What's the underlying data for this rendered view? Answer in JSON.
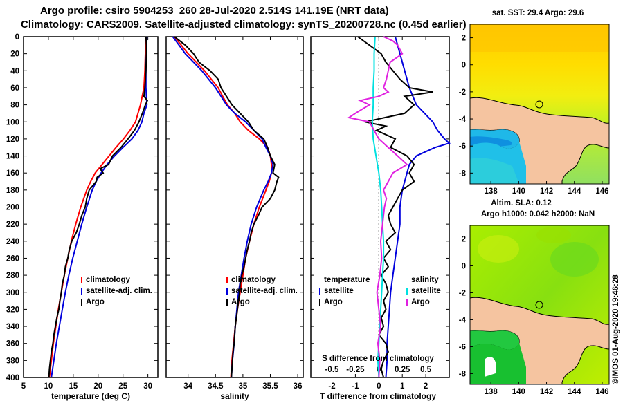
{
  "header": {
    "line1": "Argo profile: csiro 5904253_260 28-Jul-2020 2.514S 141.19E (NRT data)",
    "line2": "Climatology: CARS2009. Satellite-adjusted climatology: synTS_20200728.nc (0.45d earlier)"
  },
  "colors": {
    "climatology": "#ff0000",
    "satellite": "#0000dd",
    "argo": "#000000",
    "sat_s_diff": "#00e0e0",
    "argo_s_diff": "#e020e0",
    "land": "#f5c4a0"
  },
  "chart_data": [
    {
      "type": "line",
      "id": "temperature",
      "xlabel": "temperature (deg C)",
      "ylabel": "",
      "xlim": [
        5,
        32
      ],
      "ylim": [
        400,
        0
      ],
      "xticks": [
        "5",
        "10",
        "15",
        "20",
        "25",
        "30"
      ],
      "yticks": [
        "0",
        "20",
        "40",
        "60",
        "80",
        "100",
        "120",
        "140",
        "160",
        "180",
        "200",
        "220",
        "240",
        "260",
        "280",
        "300",
        "320",
        "340",
        "360",
        "380",
        "400"
      ],
      "legend": [
        "climatology",
        "satellite-adj. clim.",
        "Argo"
      ],
      "series": [
        {
          "name": "climatology",
          "color": "red",
          "depth": [
            0,
            20,
            40,
            60,
            80,
            100,
            110,
            120,
            130,
            140,
            150,
            160,
            170,
            180,
            200,
            220,
            240,
            260,
            280,
            300,
            320,
            340,
            360,
            380,
            400
          ],
          "values": [
            29.6,
            29.5,
            29.4,
            29.2,
            28.5,
            27.5,
            26.4,
            25.1,
            23.6,
            22.2,
            20.8,
            19.4,
            18.5,
            17.7,
            16.5,
            15.5,
            14.6,
            13.9,
            13.2,
            12.6,
            12.0,
            11.5,
            11.0,
            10.6,
            10.2
          ]
        },
        {
          "name": "satellite-adj. clim.",
          "color": "blue",
          "depth": [
            0,
            20,
            40,
            60,
            70,
            80,
            90,
            100,
            110,
            120,
            130,
            140,
            150,
            160,
            170,
            180,
            200,
            220,
            240,
            260,
            280,
            300,
            320,
            340,
            360,
            380,
            400
          ],
          "values": [
            29.8,
            29.7,
            29.6,
            29.6,
            29.7,
            29.8,
            29.2,
            28.8,
            28.0,
            26.8,
            25.0,
            23.3,
            21.8,
            20.6,
            19.6,
            18.8,
            17.7,
            16.7,
            15.8,
            14.9,
            14.1,
            13.4,
            12.8,
            12.2,
            11.6,
            11.1,
            10.6
          ]
        },
        {
          "name": "Argo",
          "color": "black",
          "depth": [
            0,
            10,
            20,
            40,
            60,
            70,
            75,
            80,
            90,
            100,
            110,
            120,
            130,
            140,
            150,
            155,
            160,
            165,
            170,
            180,
            190,
            200,
            210,
            220,
            230,
            240,
            250,
            260,
            270,
            280,
            290,
            300,
            310,
            320,
            330,
            340,
            350,
            360,
            370,
            380,
            390,
            400
          ],
          "values": [
            29.6,
            29.7,
            29.7,
            29.6,
            29.4,
            29.2,
            29.9,
            29.5,
            28.9,
            28.2,
            27.3,
            26.0,
            24.6,
            22.9,
            22.1,
            20.4,
            21.0,
            19.8,
            19.6,
            18.2,
            17.7,
            17.4,
            16.7,
            16.2,
            15.6,
            14.7,
            14.2,
            13.9,
            13.4,
            13.2,
            12.8,
            12.6,
            12.3,
            12.1,
            11.7,
            11.4,
            11.1,
            10.9,
            10.6,
            10.4,
            10.2,
            10.1
          ]
        }
      ]
    },
    {
      "type": "line",
      "id": "salinity",
      "xlabel": "salinity",
      "xlim": [
        33.6,
        36.1
      ],
      "ylim": [
        400,
        0
      ],
      "xticks": [
        "34",
        "34.5",
        "35",
        "35.5",
        "36"
      ],
      "legend": [
        "climatology",
        "satellite-adj. clim.",
        "Argo"
      ],
      "series": [
        {
          "name": "climatology",
          "color": "red",
          "depth": [
            0,
            20,
            40,
            60,
            70,
            80,
            90,
            100,
            110,
            120,
            130,
            140,
            150,
            160,
            170,
            180,
            200,
            220,
            240,
            260,
            280,
            300,
            320,
            340,
            360,
            380,
            400
          ],
          "values": [
            33.75,
            34.0,
            34.3,
            34.55,
            34.63,
            34.72,
            34.85,
            34.95,
            35.1,
            35.3,
            35.45,
            35.5,
            35.52,
            35.52,
            35.48,
            35.42,
            35.3,
            35.2,
            35.12,
            35.05,
            35.0,
            34.95,
            34.9,
            34.86,
            34.83,
            34.8,
            34.78
          ]
        },
        {
          "name": "satellite-adj. clim.",
          "color": "blue",
          "depth": [
            0,
            20,
            40,
            60,
            80,
            90,
            100,
            110,
            120,
            130,
            140,
            150,
            160,
            170,
            180,
            200,
            220,
            240,
            260,
            280,
            300,
            320,
            340,
            360,
            380,
            400
          ],
          "values": [
            33.72,
            33.95,
            34.25,
            34.5,
            34.7,
            34.85,
            35.05,
            35.2,
            35.35,
            35.42,
            35.5,
            35.55,
            35.52,
            35.46,
            35.38,
            35.25,
            35.15,
            35.08,
            35.02,
            34.97,
            34.92,
            34.89,
            34.86,
            34.84,
            34.81,
            34.79
          ]
        },
        {
          "name": "Argo",
          "color": "black",
          "depth": [
            0,
            5,
            10,
            20,
            30,
            40,
            50,
            60,
            70,
            80,
            90,
            100,
            110,
            120,
            130,
            140,
            150,
            160,
            165,
            170,
            180,
            190,
            200,
            210,
            220,
            230,
            240,
            250,
            260,
            270,
            280,
            290,
            300,
            310,
            320,
            330,
            340,
            350,
            360,
            370,
            380,
            390,
            400
          ],
          "values": [
            33.75,
            33.85,
            33.95,
            34.1,
            34.2,
            34.4,
            34.55,
            34.6,
            34.7,
            34.8,
            34.95,
            35.1,
            35.2,
            35.38,
            35.45,
            35.5,
            35.58,
            35.55,
            35.65,
            35.62,
            35.58,
            35.5,
            35.35,
            35.28,
            35.2,
            35.15,
            35.12,
            35.08,
            35.05,
            35.02,
            34.98,
            34.95,
            34.94,
            34.92,
            34.9,
            34.88,
            34.86,
            34.85,
            34.84,
            34.82,
            34.81,
            34.8,
            34.79
          ]
        }
      ]
    },
    {
      "type": "line",
      "id": "difference",
      "xlabel": "T difference from climatology",
      "xlim": [
        -2.9,
        3.0
      ],
      "ylim": [
        400,
        0
      ],
      "xticks": [
        "-2",
        "-1",
        "0",
        "1",
        "2"
      ],
      "top_axis_label": "S difference from climatology",
      "top_axis_ticks": [
        "-0.5",
        "-0.25",
        "0",
        "0.25",
        "0.5"
      ],
      "top_axis_lim": [
        -0.725,
        0.75
      ],
      "legend_temperature_title": "temperature",
      "legend_salinity_title": "salinity",
      "legend_temperature": [
        "satellite",
        "Argo"
      ],
      "legend_salinity": [
        "satellite",
        "Argo"
      ],
      "series": [
        {
          "name": "T satellite",
          "color": "blue",
          "axis": "T",
          "depth": [
            0,
            10,
            20,
            40,
            60,
            80,
            100,
            110,
            120,
            125,
            130,
            140,
            150,
            160,
            170,
            180,
            200,
            220,
            240,
            260,
            280,
            300,
            320,
            340,
            360,
            380,
            400
          ],
          "values": [
            0.7,
            0.8,
            0.9,
            1.1,
            1.3,
            1.6,
            2.3,
            2.5,
            2.8,
            3.0,
            2.4,
            1.6,
            1.3,
            1.2,
            1.1,
            1.0,
            0.9,
            0.9,
            0.8,
            0.7,
            0.6,
            0.5,
            0.45,
            0.4,
            0.35,
            0.35,
            0.3
          ]
        },
        {
          "name": "T Argo",
          "color": "black",
          "axis": "T",
          "depth": [
            0,
            10,
            20,
            30,
            40,
            50,
            60,
            65,
            70,
            80,
            90,
            100,
            105,
            110,
            120,
            130,
            140,
            150,
            160,
            170,
            180,
            190,
            200,
            210,
            220,
            230,
            240,
            250,
            260,
            270,
            280,
            290,
            300,
            310,
            320,
            330,
            340,
            350,
            360,
            370,
            380,
            390,
            400
          ],
          "values": [
            -0.9,
            -0.4,
            0.1,
            0.3,
            0.6,
            0.9,
            1.3,
            2.3,
            1.1,
            1.5,
            1.1,
            -0.6,
            0.3,
            -0.1,
            0.7,
            0.5,
            1.2,
            1.5,
            1.3,
            1.5,
            1.0,
            0.8,
            0.6,
            0.4,
            0.5,
            0.7,
            0.3,
            0.5,
            0.2,
            0.4,
            0.1,
            0.3,
            0.4,
            0.2,
            0.3,
            0.1,
            0.2,
            0.0,
            0.3,
            0.4,
            0.2,
            0.1,
            0.2
          ]
        },
        {
          "name": "S satellite",
          "color": "cyan",
          "axis": "S",
          "depth": [
            0,
            20,
            40,
            60,
            80,
            100,
            120,
            140,
            160,
            180,
            200,
            220,
            240,
            260,
            280,
            300,
            320,
            340,
            360,
            380,
            400
          ],
          "values": [
            -0.04,
            -0.05,
            -0.05,
            -0.06,
            -0.06,
            -0.07,
            -0.06,
            -0.03,
            0.0,
            0.02,
            0.03,
            0.04,
            0.05,
            0.05,
            0.04,
            0.03,
            0.02,
            0.01,
            0.0,
            -0.01,
            0.0
          ]
        },
        {
          "name": "S Argo",
          "color": "magenta",
          "axis": "S",
          "depth": [
            0,
            5,
            10,
            20,
            30,
            40,
            50,
            60,
            65,
            70,
            75,
            80,
            90,
            95,
            100,
            110,
            120,
            130,
            140,
            150,
            160,
            170,
            180,
            190,
            200,
            220,
            240,
            260,
            280,
            300,
            320,
            340,
            360,
            380,
            400
          ],
          "values": [
            0.05,
            0.15,
            0.2,
            0.25,
            0.12,
            0.1,
            0.08,
            0.05,
            0.1,
            0.0,
            -0.2,
            -0.1,
            -0.25,
            -0.32,
            -0.1,
            -0.05,
            0.0,
            0.1,
            0.2,
            0.3,
            0.15,
            0.1,
            0.05,
            0.08,
            0.06,
            0.04,
            0.02,
            0.03,
            0.01,
            -0.02,
            0.0,
            0.02,
            -0.01,
            0.01,
            0.0
          ]
        }
      ]
    }
  ],
  "maps": {
    "sst": {
      "title": "sat. SST: 29.4 Argo: 29.6",
      "xticks": [
        "138",
        "140",
        "142",
        "144",
        "146"
      ],
      "yticks": [
        "2",
        "0",
        "-2",
        "-4",
        "-6",
        "-8"
      ]
    },
    "sla": {
      "title_line1": "Altim. SLA: 0.12",
      "title_line2": "Argo h1000: 0.042 h2000: NaN",
      "xticks": [
        "138",
        "140",
        "142",
        "144",
        "146"
      ],
      "yticks": [
        "2",
        "0",
        "-2",
        "-4",
        "-6",
        "-8"
      ]
    }
  },
  "footer": {
    "credit": "©IMOS 01-Aug-2020 19:46:28"
  }
}
